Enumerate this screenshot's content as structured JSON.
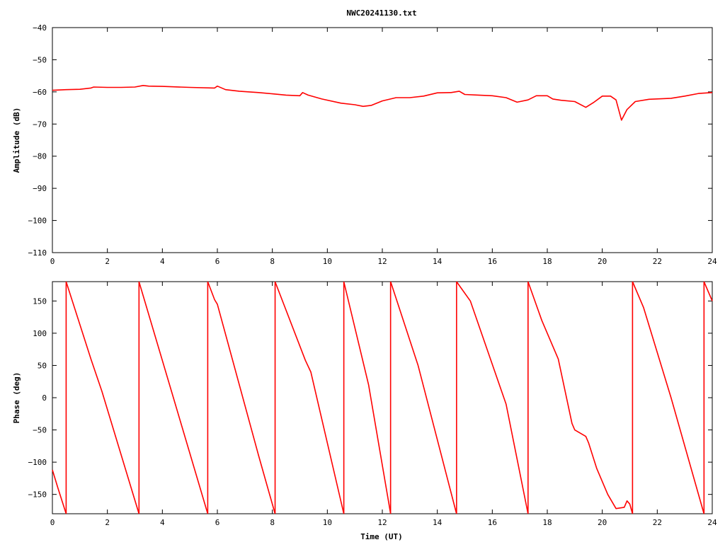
{
  "title": "NWC20241130.txt",
  "colors": {
    "series": "#ff0000",
    "axis": "#000000",
    "background": "#ffffff"
  },
  "chart_data": [
    {
      "type": "line",
      "ylabel": "Amplitude (dB)",
      "xlabel": "",
      "xlim": [
        0,
        24
      ],
      "ylim": [
        -110,
        -40
      ],
      "xticks": [
        "0",
        "2",
        "4",
        "6",
        "8",
        "10",
        "12",
        "14",
        "16",
        "18",
        "20",
        "22",
        "24"
      ],
      "yticks": [
        "-40",
        "-50",
        "-60",
        "-70",
        "-80",
        "-90",
        "-100",
        "-110"
      ],
      "grid": false,
      "series": [
        {
          "color": "#ff0000",
          "x": [
            0,
            0.5,
            1,
            1.4,
            1.5,
            2,
            2.5,
            3,
            3.3,
            3.5,
            4,
            5,
            5.9,
            6,
            6.3,
            6.8,
            7.5,
            8,
            8.5,
            9,
            9.1,
            9.3,
            9.8,
            10.5,
            11,
            11.3,
            11.6,
            12,
            12.5,
            13,
            13.5,
            14,
            14.5,
            14.8,
            15,
            15.5,
            16,
            16.5,
            16.9,
            17.3,
            17.6,
            18,
            18.2,
            18.5,
            19,
            19.4,
            19.7,
            20,
            20.3,
            20.5,
            20.7,
            20.9,
            21.2,
            21.7,
            22.5,
            23,
            23.5,
            24
          ],
          "y": [
            -59.5,
            -59.3,
            -59.2,
            -58.8,
            -58.5,
            -58.6,
            -58.6,
            -58.5,
            -58.0,
            -58.2,
            -58.3,
            -58.6,
            -58.8,
            -58.2,
            -59.3,
            -59.8,
            -60.2,
            -60.6,
            -61.0,
            -61.2,
            -60.2,
            -61.0,
            -62.2,
            -63.5,
            -64.0,
            -64.5,
            -64.2,
            -62.8,
            -61.8,
            -61.8,
            -61.3,
            -60.3,
            -60.2,
            -59.8,
            -60.8,
            -61.0,
            -61.2,
            -61.8,
            -63.2,
            -62.5,
            -61.2,
            -61.2,
            -62.2,
            -62.6,
            -63.0,
            -64.8,
            -63.2,
            -61.3,
            -61.3,
            -62.5,
            -68.8,
            -65.5,
            -63.0,
            -62.3,
            -62.0,
            -61.3,
            -60.5,
            -60.2
          ]
        }
      ]
    },
    {
      "type": "line",
      "ylabel": "Phase (deg)",
      "xlabel": "Time (UT)",
      "xlim": [
        0,
        24
      ],
      "ylim": [
        -180,
        180
      ],
      "xticks": [
        "0",
        "2",
        "4",
        "6",
        "8",
        "10",
        "12",
        "14",
        "16",
        "18",
        "20",
        "22",
        "24"
      ],
      "yticks": [
        "150",
        "100",
        "50",
        "0",
        "-50",
        "-100",
        "-150"
      ],
      "grid": false,
      "series": [
        {
          "color": "#ff0000",
          "segments": [
            {
              "x": [
                0,
                0.2,
                0.5
              ],
              "y": [
                -112,
                -140,
                -180
              ]
            },
            {
              "x": [
                0.5,
                1.4,
                1.8,
                3.15
              ],
              "y": [
                180,
                60,
                10,
                -180
              ]
            },
            {
              "x": [
                3.15,
                4.4,
                5.65
              ],
              "y": [
                180,
                0,
                -180
              ]
            },
            {
              "x": [
                5.65,
                5.9,
                6.0,
                7.5,
                8.1
              ],
              "y": [
                180,
                152,
                145,
                -90,
                -180
              ]
            },
            {
              "x": [
                8.1,
                9.2,
                9.4,
                10.6
              ],
              "y": [
                180,
                58,
                40,
                -180
              ]
            },
            {
              "x": [
                10.6,
                11.5,
                12.3
              ],
              "y": [
                180,
                20,
                -180
              ]
            },
            {
              "x": [
                12.3,
                13.3,
                14.7
              ],
              "y": [
                180,
                50,
                -180
              ]
            },
            {
              "x": [
                14.7,
                15.2,
                16.5,
                17.3
              ],
              "y": [
                180,
                150,
                -10,
                -180
              ]
            },
            {
              "x": [
                17.3,
                17.8,
                18.4,
                18.9,
                19.0,
                19.4,
                19.5,
                19.8,
                20.2,
                20.5,
                20.8,
                20.9,
                21.0,
                21.1
              ],
              "y": [
                180,
                120,
                60,
                -40,
                -50,
                -60,
                -70,
                -110,
                -150,
                -172,
                -170,
                -160,
                -165,
                -180
              ]
            },
            {
              "x": [
                21.1,
                21.5,
                22.5,
                23.7
              ],
              "y": [
                180,
                140,
                0,
                -180
              ]
            },
            {
              "x": [
                23.7,
                24
              ],
              "y": [
                180,
                150
              ]
            }
          ]
        }
      ]
    }
  ]
}
